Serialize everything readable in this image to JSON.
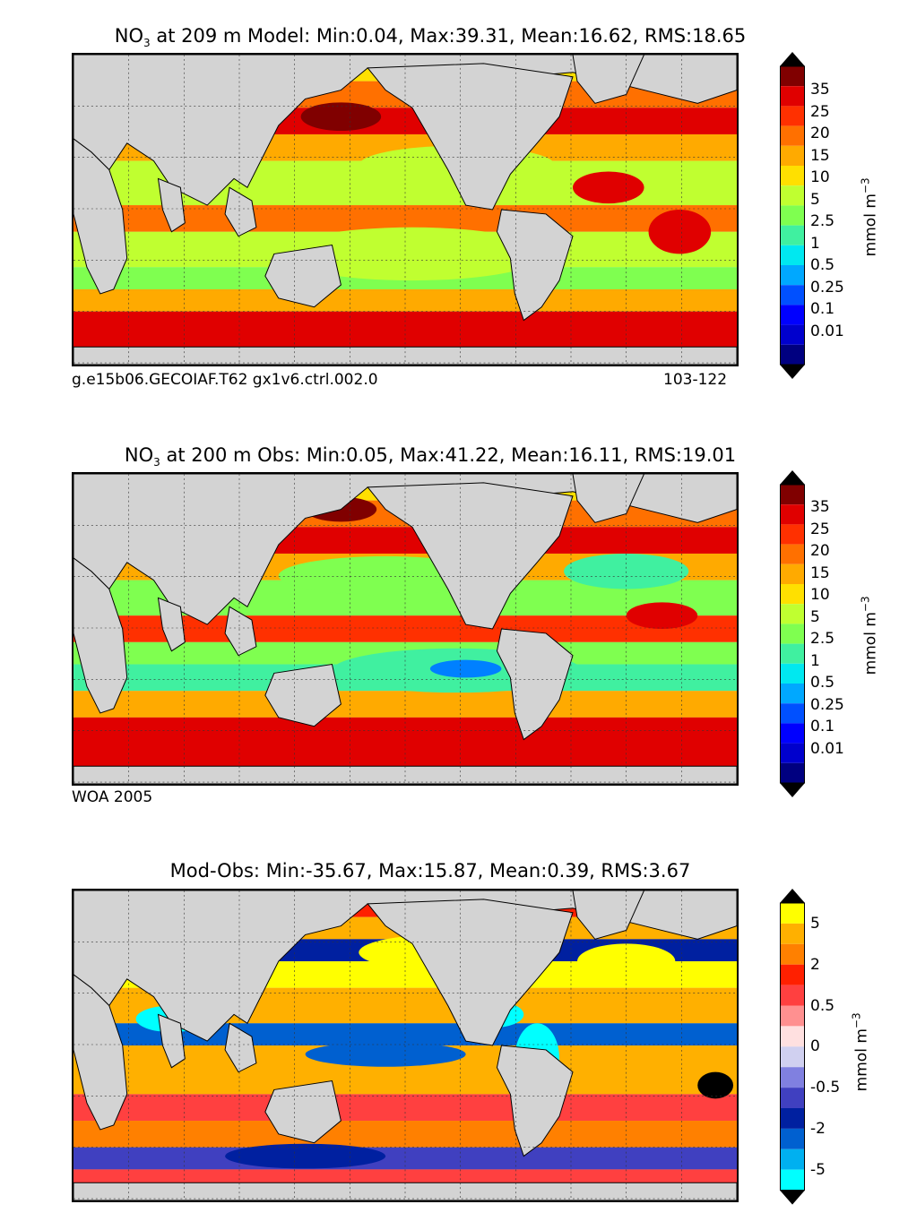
{
  "panels": [
    {
      "title_pre": "NO",
      "title_sub": "3",
      "title_post": " at 209 m Model: Min:0.04, Max:39.31, Mean:16.62, RMS:18.65",
      "footer_left": "g.e15b06.GECOIAF.T62 gx1v6.ctrl.002.0",
      "footer_right": "103-122"
    },
    {
      "title_pre": "NO",
      "title_sub": "3",
      "title_post": " at 200 m Obs: Min:0.05, Max:41.22, Mean:16.11, RMS:19.01",
      "footer_left": "WOA 2005",
      "footer_right": ""
    },
    {
      "title_pre": "",
      "title_sub": "",
      "title_post": "Mod-Obs: Min:-35.67, Max:15.87, Mean:0.39, RMS:3.67",
      "footer_left": "",
      "footer_right": ""
    }
  ],
  "colorbars": {
    "concentration": {
      "ticks": [
        "35",
        "25",
        "20",
        "15",
        "10",
        "5",
        "2.5",
        "1",
        "0.5",
        "0.25",
        "0.1",
        "0.01"
      ],
      "colors": [
        "#000080",
        "#0000cd",
        "#0000ff",
        "#0050ff",
        "#00a8ff",
        "#00e8f0",
        "#40f0a0",
        "#7fff50",
        "#c0ff30",
        "#ffe000",
        "#ffaa00",
        "#ff7000",
        "#ff3000",
        "#e00000",
        "#800000"
      ],
      "label_pre": "mmol m",
      "label_sup": "−3"
    },
    "difference": {
      "ticks": [
        "5",
        "2",
        "0.5",
        "0",
        "-0.5",
        "-2",
        "-5"
      ],
      "colors": [
        "#00ffff",
        "#00b0f0",
        "#0060d0",
        "#0020a0",
        "#4040c0",
        "#8080e0",
        "#d0d0f0",
        "#ffe0e0",
        "#ff9090",
        "#ff4040",
        "#ff2000",
        "#ff8000",
        "#ffb000",
        "#ffff00"
      ],
      "label_pre": "mmol m",
      "label_sup": "−3"
    }
  },
  "chart_data": [
    {
      "type": "heatmap",
      "title": "NO3 at 209 m Model: Min:0.04, Max:39.31, Mean:16.62, RMS:18.65",
      "variable": "NO3",
      "depth_m": 209,
      "stats": {
        "min": 0.04,
        "max": 39.31,
        "mean": 16.62,
        "rms": 18.65
      },
      "colorbar_levels": [
        0.01,
        0.1,
        0.25,
        0.5,
        1,
        2.5,
        5,
        10,
        15,
        20,
        25,
        35
      ],
      "units": "mmol m^-3",
      "extend": "both"
    },
    {
      "type": "heatmap",
      "title": "NO3 at 200 m Obs: Min:0.05, Max:41.22, Mean:16.11, RMS:19.01",
      "variable": "NO3",
      "depth_m": 200,
      "stats": {
        "min": 0.05,
        "max": 41.22,
        "mean": 16.11,
        "rms": 19.01
      },
      "colorbar_levels": [
        0.01,
        0.1,
        0.25,
        0.5,
        1,
        2.5,
        5,
        10,
        15,
        20,
        25,
        35
      ],
      "units": "mmol m^-3",
      "extend": "both"
    },
    {
      "type": "heatmap",
      "title": "Mod-Obs: Min:-35.67, Max:15.87, Mean:0.39, RMS:3.67",
      "stats": {
        "min": -35.67,
        "max": 15.87,
        "mean": 0.39,
        "rms": 3.67
      },
      "colorbar_ticks": [
        -5,
        -2,
        -0.5,
        0,
        0.5,
        2,
        5
      ],
      "units": "mmol m^-3",
      "extend": "both"
    }
  ]
}
